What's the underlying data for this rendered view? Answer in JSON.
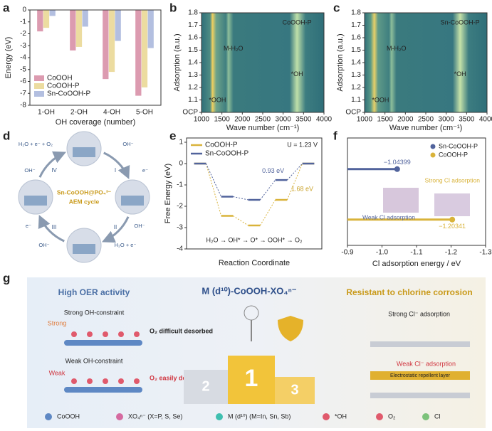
{
  "panel_labels": [
    "a",
    "b",
    "c",
    "d",
    "e",
    "f",
    "g"
  ],
  "chart_data": [
    {
      "type": "bar",
      "ylabel": "Energy (eV)",
      "xlabel": "OH coverage (number)",
      "categories": [
        "1-OH",
        "2-OH",
        "4-OH",
        "5-OH"
      ],
      "series": [
        {
          "name": "CoOOH",
          "color": "#dc9bb0",
          "values": [
            -1.8,
            -3.4,
            -5.8,
            -7.2
          ]
        },
        {
          "name": "CoOOH-P",
          "color": "#ecdca0",
          "values": [
            -1.5,
            -3.1,
            -5.2,
            -6.5
          ]
        },
        {
          "name": "Sn-CoOOH-P",
          "color": "#b3bfe0",
          "values": [
            -0.5,
            -1.4,
            -2.6,
            -3.2
          ]
        }
      ],
      "ylim": [
        -8,
        0
      ],
      "yticks": [
        0,
        -1,
        -2,
        -3,
        -4,
        -5,
        -6,
        -7,
        -8
      ]
    },
    {
      "type": "heatmap",
      "ylabel": "Adsorption (a.u.)",
      "xlabel": "Wave number (cm⁻¹)",
      "xlim": [
        1000,
        4000
      ],
      "xticks": [
        1000,
        1500,
        2000,
        2500,
        3000,
        3500,
        4000
      ],
      "ylim": [
        1.0,
        1.8
      ],
      "yticks": [
        {
          "value": 1.0,
          "label": "OCP"
        },
        1.1,
        1.2,
        1.3,
        1.4,
        1.5,
        1.6,
        1.7,
        1.8
      ],
      "annotations": [
        "CoOOH-P",
        "M-H₂O",
        "*OH",
        "*OOH"
      ]
    },
    {
      "type": "heatmap",
      "ylabel": "Adsorption (a.u.)",
      "xlabel": "Wave number (cm⁻¹)",
      "xlim": [
        1000,
        4000
      ],
      "xticks": [
        1000,
        1500,
        2000,
        2500,
        3000,
        3500,
        4000
      ],
      "ylim": [
        1.0,
        1.8
      ],
      "yticks": [
        {
          "value": 1.0,
          "label": "OCP"
        },
        1.1,
        1.2,
        1.3,
        1.4,
        1.5,
        1.6,
        1.7,
        1.8
      ],
      "annotations": [
        "Sn-CoOOH-P",
        "M-H₂O",
        "*OH",
        "*OOH"
      ]
    },
    {
      "type": "step",
      "ylabel": "Free Energy (eV)",
      "xlabel": "Reaction Coordinate",
      "series": [
        {
          "name": "CoOOH-P",
          "color": "#d9b33a",
          "values": [
            0,
            -2.45,
            -2.9,
            -1.7,
            0
          ]
        },
        {
          "name": "Sn-CoOOH-P",
          "color": "#51639c",
          "values": [
            0,
            -1.55,
            -1.7,
            -0.77,
            0
          ]
        }
      ],
      "ylim": [
        -4,
        1.2
      ],
      "yticks": [
        -4,
        -3,
        -2,
        -1,
        0,
        1
      ],
      "annotations": [
        "U = 1.23 V",
        "0.93 eV",
        "1.68 eV",
        "H₂O → OH* → O* → OOH* → O₂"
      ]
    },
    {
      "type": "lollipop",
      "xlabel": "Cl adsorption energy / eV",
      "xlim": [
        -0.9,
        -1.3
      ],
      "xticks": [
        -0.9,
        {
          "value": -1,
          "label": "-1.0"
        },
        -1.1,
        -1.2,
        -1.3
      ],
      "series": [
        {
          "name": "Sn-CoOOH-P",
          "color": "#51639c",
          "values": [
            -1.04399
          ],
          "value_labels": [
            "−1.04399"
          ]
        },
        {
          "name": "CoOOH-P",
          "color": "#d9b33a",
          "values": [
            -1.20341
          ],
          "value_labels": [
            "−1.20341"
          ]
        }
      ],
      "annotations": [
        "Strong Cl adsorption",
        "Weak Cl adsorption"
      ]
    }
  ],
  "diagram_d": {
    "center": "Sn-CoOOH@PO₄³⁻",
    "subtitle": "AEM cycle",
    "steps": [
      "I",
      "II",
      "III",
      "IV"
    ],
    "labels": [
      "H₂O + e⁻ + O₂",
      "OH⁻",
      "OH⁻",
      "e⁻",
      "OH⁻",
      "H₂O + e⁻",
      "e⁻",
      "OH⁻"
    ]
  },
  "schematic_g": {
    "left_title": "High OER activity",
    "center_title": "M (d¹⁰)-CoOOH-XO₄ⁿ⁻",
    "right_title": "Resistant to chlorine corrosion",
    "left_labels": [
      "Strong OH-constraint",
      "Strong",
      "O₂ difficult desorbed",
      "Weak OH-constraint",
      "Weak",
      "O₂ easily desorbed"
    ],
    "right_labels": [
      "Strong Cl⁻ adsorption",
      "Weak Cl⁻ adsorption",
      "Electrostatic repellent layer"
    ],
    "podium": [
      "2",
      "1",
      "3"
    ],
    "legend": [
      "CoOOH",
      "XO₄ⁿ⁻ (X=P, S, Se)",
      "M (d¹⁰) (M=In, Sn, Sb)",
      "*OH",
      "O₂",
      "Cl"
    ]
  }
}
